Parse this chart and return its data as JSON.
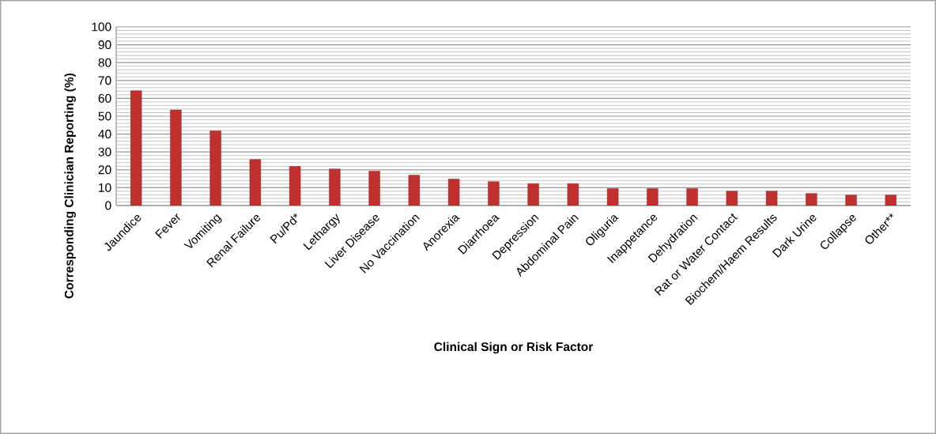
{
  "chart_data": {
    "type": "bar",
    "xlabel": "Clinical Sign or Risk Factor",
    "ylabel": "Corresponding Clinician Reporting (%)",
    "categories": [
      "Jaundice",
      "Fever",
      "Vomiting",
      "Renal Failure",
      "Pu/Pd*",
      "Lethargy",
      "Liver Disease",
      "No Vaccination",
      "Anorexia",
      "Diarrhoea",
      "Depression",
      "Abdominal Pain",
      "Oliguria",
      "Inappetance",
      "Dehydration",
      "Rat or Water Contact",
      "Biochem/Haem Results",
      "Dark Urine",
      "Collapse",
      "Other**"
    ],
    "values": [
      64.4,
      53.5,
      41.8,
      25.8,
      21.9,
      20.5,
      19.2,
      17,
      14.8,
      13.4,
      12.3,
      12.3,
      9.5,
      9.5,
      9.5,
      8.1,
      8.1,
      6.8,
      5.9,
      5.9
    ],
    "color": "#c0302f",
    "ylim": [
      0,
      100
    ],
    "yticks": [
      0,
      10,
      20,
      30,
      40,
      50,
      60,
      70,
      80,
      90,
      100
    ],
    "grid": true
  }
}
